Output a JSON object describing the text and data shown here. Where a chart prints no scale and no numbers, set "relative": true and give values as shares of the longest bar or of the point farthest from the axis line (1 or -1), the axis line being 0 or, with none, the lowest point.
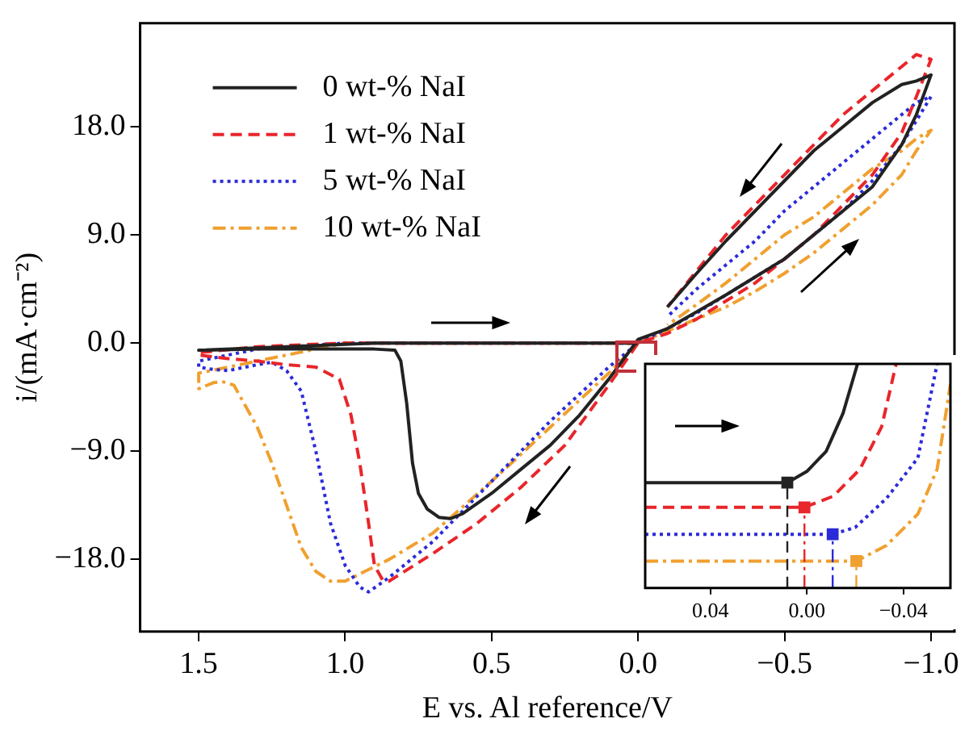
{
  "chart_data": [
    {
      "type": "line",
      "xlabel": "E vs. Al reference/V",
      "ylabel": "i/(mA·cm⁻²)",
      "xlim": [
        1.7,
        -1.08
      ],
      "xticks": [
        {
          "value": 1.5,
          "label": "1.5"
        },
        {
          "value": 1.0,
          "label": "1.0"
        },
        {
          "value": 0.5,
          "label": "0.5"
        },
        {
          "value": 0,
          "label": "0.0"
        },
        {
          "value": -0.5,
          "label": "−0.5"
        },
        {
          "value": -1.0,
          "label": "−1.0"
        }
      ],
      "ylim": [
        -24,
        26.6
      ],
      "yticks": [
        {
          "value": -18,
          "label": "−18.0"
        },
        {
          "value": -9,
          "label": "−9.0"
        },
        {
          "value": 0,
          "label": "0.0"
        },
        {
          "value": 9,
          "label": "9.0"
        },
        {
          "value": 18,
          "label": "18.0"
        }
      ],
      "legend": "top left",
      "series": [
        {
          "name": "0 wt-% NaI",
          "color": "#222222",
          "line_style": "solid",
          "x": [
            0,
            0.3,
            0.6,
            0.9,
            1.2,
            1.5,
            1.5,
            1.3,
            1.1,
            0.9,
            0.83,
            0.81,
            0.79,
            0.77,
            0.75,
            0.72,
            0.68,
            0.64,
            0.6,
            0.5,
            0.4,
            0.3,
            0.2,
            0.1,
            0,
            -0.1,
            -0.2,
            -0.3,
            -0.4,
            -0.5,
            -0.6,
            -0.7,
            -0.8,
            -0.9,
            -0.95,
            -1.0,
            -0.95,
            -0.9,
            -0.8,
            -0.7,
            -0.6,
            -0.5,
            -0.4,
            -0.3,
            -0.2,
            -0.1
          ],
          "values": [
            0,
            0,
            0,
            0,
            -0.3,
            -0.6,
            -0.6,
            -0.5,
            -0.5,
            -0.5,
            -0.6,
            -1.5,
            -5,
            -10,
            -12.5,
            -13.8,
            -14.5,
            -14.6,
            -14.2,
            -12.5,
            -10.5,
            -8.5,
            -6,
            -3,
            0.3,
            1.2,
            2.6,
            4,
            5.5,
            7,
            9,
            11,
            13,
            16.5,
            19,
            22.3,
            21.8,
            21.5,
            20,
            18,
            16,
            13.5,
            11,
            8.5,
            5.8,
            3
          ]
        },
        {
          "name": "1 wt-% NaI",
          "color": "#e8262b",
          "line_style": "dashed",
          "x": [
            0,
            0.5,
            1.0,
            1.3,
            1.5,
            1.5,
            1.4,
            1.3,
            1.2,
            1.1,
            1.02,
            0.98,
            0.95,
            0.92,
            0.9,
            0.87,
            0.85,
            0.7,
            0.55,
            0.4,
            0.25,
            0.1,
            0,
            -0.1,
            -0.2,
            -0.3,
            -0.4,
            -0.5,
            -0.6,
            -0.7,
            -0.8,
            -0.9,
            -0.95,
            -1.0,
            -0.95,
            -0.9,
            -0.8,
            -0.7,
            -0.6,
            -0.5,
            -0.4,
            -0.3,
            -0.2,
            -0.1
          ],
          "values": [
            0,
            0,
            0,
            -0.3,
            -0.8,
            -1.0,
            -1.3,
            -1.5,
            -1.8,
            -2,
            -3,
            -6,
            -10,
            -15,
            -18.5,
            -19.8,
            -19.8,
            -17.5,
            -15,
            -12,
            -8.5,
            -3.5,
            0,
            0.8,
            2,
            3.5,
            5,
            7,
            9,
            11.5,
            14,
            17.5,
            20.5,
            23.6,
            24,
            23,
            21,
            19,
            16.5,
            14,
            11.5,
            9,
            6,
            3
          ]
        },
        {
          "name": "5 wt-% NaI",
          "color": "#2b2bd9",
          "line_style": "dotted",
          "x": [
            0,
            0.5,
            1.0,
            1.3,
            1.5,
            1.5,
            1.45,
            1.4,
            1.3,
            1.25,
            1.2,
            1.15,
            1.1,
            1.05,
            1.0,
            0.95,
            0.92,
            0.85,
            0.7,
            0.5,
            0.3,
            0.1,
            0,
            -0.1,
            -0.2,
            -0.3,
            -0.4,
            -0.5,
            -0.6,
            -0.7,
            -0.8,
            -0.9,
            -0.95,
            -1.0,
            -0.95,
            -0.9,
            -0.8,
            -0.7,
            -0.6,
            -0.5,
            -0.4,
            -0.3,
            -0.2,
            -0.1
          ],
          "values": [
            0,
            0,
            0,
            -0.5,
            -1.5,
            -2,
            -2.2,
            -2.3,
            -1.8,
            -1.6,
            -2.3,
            -4,
            -9,
            -15,
            -18.5,
            -20.3,
            -20.7,
            -19.5,
            -16.5,
            -11.5,
            -6.5,
            -2,
            0,
            1.2,
            2.5,
            4,
            5.5,
            7,
            9,
            11,
            13.5,
            16.5,
            18.5,
            20.5,
            20,
            19,
            17,
            15,
            13,
            11,
            8.5,
            6.5,
            4.5,
            2.2
          ]
        },
        {
          "name": "10 wt-% NaI",
          "color": "#f0a030",
          "line_style": "dashdot",
          "x": [
            0,
            0.5,
            1.0,
            1.3,
            1.5,
            1.5,
            1.45,
            1.42,
            1.38,
            1.3,
            1.25,
            1.2,
            1.15,
            1.1,
            1.05,
            1.0,
            0.95,
            0.85,
            0.7,
            0.5,
            0.3,
            0.1,
            0,
            -0.1,
            -0.2,
            -0.3,
            -0.4,
            -0.5,
            -0.6,
            -0.7,
            -0.8,
            -0.9,
            -0.95,
            -1.0,
            -0.95,
            -0.9,
            -0.8,
            -0.7,
            -0.6,
            -0.5,
            -0.4,
            -0.3,
            -0.2,
            -0.1
          ],
          "values": [
            0,
            0,
            0,
            -1.5,
            -2.5,
            -3.8,
            -3.3,
            -3.2,
            -3.5,
            -7,
            -10,
            -13.5,
            -17,
            -19,
            -19.8,
            -19.8,
            -19.2,
            -18,
            -15.8,
            -11.5,
            -7,
            -2.5,
            0,
            1,
            2,
            3,
            4.3,
            5.8,
            7.5,
            9.5,
            11.5,
            14,
            16,
            17.7,
            17,
            16,
            14.5,
            12.5,
            10.5,
            9,
            7,
            5,
            3.2,
            1.5
          ]
        }
      ]
    },
    {
      "type": "line",
      "relative": true,
      "tick_labels": "x",
      "xlim": [
        0.067,
        -0.0595
      ],
      "xticks": [
        {
          "value": 0.04,
          "label": "0.04"
        },
        {
          "value": 0,
          "label": "0.00"
        },
        {
          "value": -0.04,
          "label": "−0.04"
        }
      ],
      "series": [
        {
          "color": "#222222",
          "line_style": "solid",
          "x": [
            0.067,
            0.03,
            0.0081,
            0.0,
            -0.008,
            -0.015,
            -0.021
          ],
          "values": [
            0.47,
            0.47,
            0.47,
            0.52,
            0.61,
            0.78,
            1.0
          ]
        },
        {
          "color": "#e8262b",
          "line_style": "dashed",
          "x": [
            0.067,
            0.02,
            0.001,
            -0.011,
            -0.022,
            -0.031,
            -0.037
          ],
          "values": [
            0.36,
            0.36,
            0.36,
            0.41,
            0.53,
            0.72,
            1.0
          ]
        },
        {
          "color": "#2b2bd9",
          "line_style": "dotted",
          "x": [
            0.067,
            0.02,
            -0.0107,
            -0.02,
            -0.033,
            -0.046,
            -0.054
          ],
          "values": [
            0.24,
            0.24,
            0.24,
            0.27,
            0.4,
            0.58,
            1.0
          ]
        },
        {
          "color": "#f0a030",
          "line_style": "dashdot",
          "x": [
            0.067,
            0.02,
            -0.0205,
            -0.033,
            -0.046,
            -0.054,
            -0.0595
          ],
          "values": [
            0.12,
            0.12,
            0.12,
            0.19,
            0.33,
            0.53,
            0.91
          ]
        },
        {
          "type": "scatter",
          "marker": "square",
          "x": [
            0.0081,
            0.001,
            -0.0107,
            -0.0205
          ],
          "values": [
            0.47,
            0.36,
            0.24,
            0.12
          ],
          "colors": [
            "#222222",
            "#e8262b",
            "#2b2bd9",
            "#f0a030"
          ]
        }
      ],
      "ref_lines": [
        {
          "axis": "x",
          "value": 0.0081,
          "color": "#222222",
          "line_style": "dashed"
        },
        {
          "axis": "x",
          "value": 0.001,
          "color": "#e8262b",
          "line_style": "dashdot"
        },
        {
          "axis": "x",
          "value": -0.0107,
          "color": "#2b2bd9",
          "line_style": "dashdot"
        },
        {
          "axis": "x",
          "value": -0.0205,
          "color": "#f0a030",
          "line_style": "dashdot"
        }
      ]
    }
  ]
}
